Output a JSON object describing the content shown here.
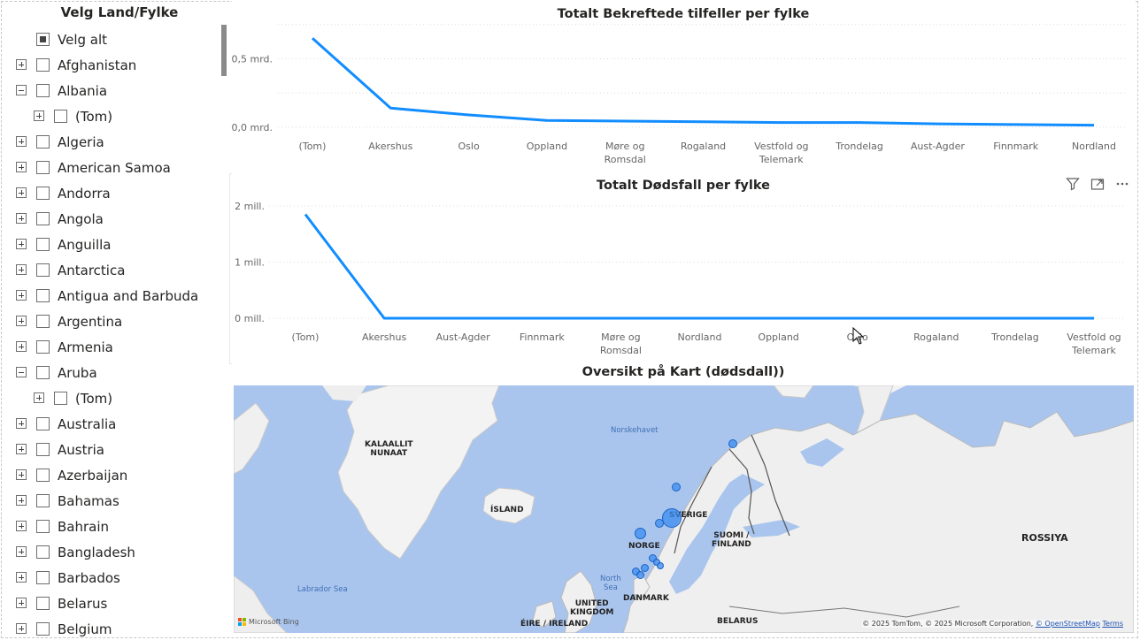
{
  "slicer": {
    "title": "Velg Land/Fylke",
    "items": [
      {
        "label": "Velg alt",
        "level": 0,
        "expander": "none",
        "check": "partial"
      },
      {
        "label": "Afghanistan",
        "level": 0,
        "expander": "plus",
        "check": "empty"
      },
      {
        "label": "Albania",
        "level": 0,
        "expander": "minus",
        "check": "empty"
      },
      {
        "label": "(Tom)",
        "level": 1,
        "expander": "plus",
        "check": "empty"
      },
      {
        "label": "Algeria",
        "level": 0,
        "expander": "plus",
        "check": "empty"
      },
      {
        "label": "American Samoa",
        "level": 0,
        "expander": "plus",
        "check": "empty"
      },
      {
        "label": "Andorra",
        "level": 0,
        "expander": "plus",
        "check": "empty"
      },
      {
        "label": "Angola",
        "level": 0,
        "expander": "plus",
        "check": "empty"
      },
      {
        "label": "Anguilla",
        "level": 0,
        "expander": "plus",
        "check": "empty"
      },
      {
        "label": "Antarctica",
        "level": 0,
        "expander": "plus",
        "check": "empty"
      },
      {
        "label": "Antigua and Barbuda",
        "level": 0,
        "expander": "plus",
        "check": "empty"
      },
      {
        "label": "Argentina",
        "level": 0,
        "expander": "plus",
        "check": "empty"
      },
      {
        "label": "Armenia",
        "level": 0,
        "expander": "plus",
        "check": "empty"
      },
      {
        "label": "Aruba",
        "level": 0,
        "expander": "minus",
        "check": "empty"
      },
      {
        "label": "(Tom)",
        "level": 1,
        "expander": "plus",
        "check": "empty"
      },
      {
        "label": "Australia",
        "level": 0,
        "expander": "plus",
        "check": "empty"
      },
      {
        "label": "Austria",
        "level": 0,
        "expander": "plus",
        "check": "empty"
      },
      {
        "label": "Azerbaijan",
        "level": 0,
        "expander": "plus",
        "check": "empty"
      },
      {
        "label": "Bahamas",
        "level": 0,
        "expander": "plus",
        "check": "empty"
      },
      {
        "label": "Bahrain",
        "level": 0,
        "expander": "plus",
        "check": "empty"
      },
      {
        "label": "Bangladesh",
        "level": 0,
        "expander": "plus",
        "check": "empty"
      },
      {
        "label": "Barbados",
        "level": 0,
        "expander": "plus",
        "check": "empty"
      },
      {
        "label": "Belarus",
        "level": 0,
        "expander": "plus",
        "check": "empty"
      },
      {
        "label": "Belgium",
        "level": 0,
        "expander": "plus",
        "check": "empty"
      }
    ]
  },
  "visual_header": {
    "icons": [
      "filter-icon",
      "focus-mode-icon",
      "more-options-icon"
    ]
  },
  "chart_data": [
    {
      "type": "line",
      "title": "Totalt Bekreftede tilfeller per fylke",
      "categories": [
        "(Tom)",
        "Akershus",
        "Oslo",
        "Oppland",
        "Møre og\nRomsdal",
        "Rogaland",
        "Vestfold og\nTelemark",
        "Trondelag",
        "Aust-Agder",
        "Finnmark",
        "Nordland"
      ],
      "values": [
        0.65,
        0.14,
        0.09,
        0.05,
        0.045,
        0.04,
        0.035,
        0.035,
        0.025,
        0.02,
        0.015
      ],
      "ylim": [
        0,
        0.8
      ],
      "ytick_values": [
        0,
        0.5
      ],
      "ytick_labels": [
        "0,0 mrd.",
        "0,5 mrd."
      ],
      "unit": "mrd.",
      "grid": true,
      "color": "#118dff"
    },
    {
      "type": "line",
      "title": "Totalt Dødsfall per fylke",
      "categories": [
        "(Tom)",
        "Akershus",
        "Aust-Agder",
        "Finnmark",
        "Møre og\nRomsdal",
        "Nordland",
        "Oppland",
        "Oslo",
        "Rogaland",
        "Trondelag",
        "Vestfold og\nTelemark"
      ],
      "values": [
        1.85,
        0,
        0,
        0,
        0,
        0,
        0,
        0,
        0,
        0,
        0
      ],
      "ylim": [
        0,
        2
      ],
      "ytick_values": [
        0,
        1,
        2
      ],
      "ytick_labels": [
        "0 mill.",
        "1 mill.",
        "2 mill."
      ],
      "unit": "mill.",
      "grid": true,
      "color": "#118dff"
    }
  ],
  "map": {
    "title": "Oversikt på Kart (dødsdall))",
    "labels": [
      "KALAALLIT\nNUNAAT",
      "ÍSLAND",
      "Norskehavet",
      "SVERIGE",
      "NORGE",
      "SUOMI /\nFINLAND",
      "ROSSIYA",
      "North\nSea",
      "Labrador Sea",
      "UNITED\nKINGDOM",
      "DANMARK",
      "ÉIRE / IRELAND",
      "BELARUS"
    ],
    "copyright": "© 2025 TomTom, © 2025 Microsoft Corporation,",
    "osm_link": "© OpenStreetMap",
    "terms": "Terms",
    "provider": "Microsoft Bing",
    "bubble_color": "#3c8cf0"
  }
}
